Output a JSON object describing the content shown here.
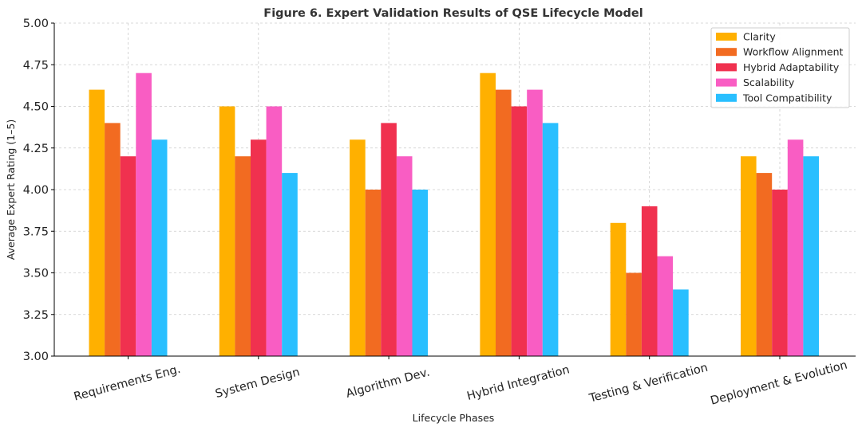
{
  "chart_data": {
    "type": "bar",
    "title": "Figure 6. Expert Validation Results of QSE Lifecycle Model",
    "xlabel": "Lifecycle Phases",
    "ylabel": "Average Expert Rating (1–5)",
    "ylim": [
      3.0,
      5.0
    ],
    "yticks": [
      "3.00",
      "3.25",
      "3.50",
      "3.75",
      "4.00",
      "4.25",
      "4.50",
      "4.75",
      "5.00"
    ],
    "grid": true,
    "legend_position": "top-right",
    "categories": [
      "Requirements Eng.",
      "System Design",
      "Algorithm Dev.",
      "Hybrid Integration",
      "Testing & Verification",
      "Deployment & Evolution"
    ],
    "series": [
      {
        "name": "Clarity",
        "color": "#FFB000",
        "values": [
          4.6,
          4.5,
          4.3,
          4.7,
          3.8,
          4.2
        ]
      },
      {
        "name": "Workflow Alignment",
        "color": "#F26B21",
        "values": [
          4.4,
          4.2,
          4.0,
          4.6,
          3.5,
          4.1
        ]
      },
      {
        "name": "Hybrid Adaptability",
        "color": "#F0314F",
        "values": [
          4.2,
          4.3,
          4.4,
          4.5,
          3.9,
          4.0
        ]
      },
      {
        "name": "Scalability",
        "color": "#F95DC3",
        "values": [
          4.7,
          4.5,
          4.2,
          4.6,
          3.6,
          4.3
        ]
      },
      {
        "name": "Tool Compatibility",
        "color": "#29BFFF",
        "values": [
          4.3,
          4.1,
          4.0,
          4.4,
          3.4,
          4.2
        ]
      }
    ]
  }
}
